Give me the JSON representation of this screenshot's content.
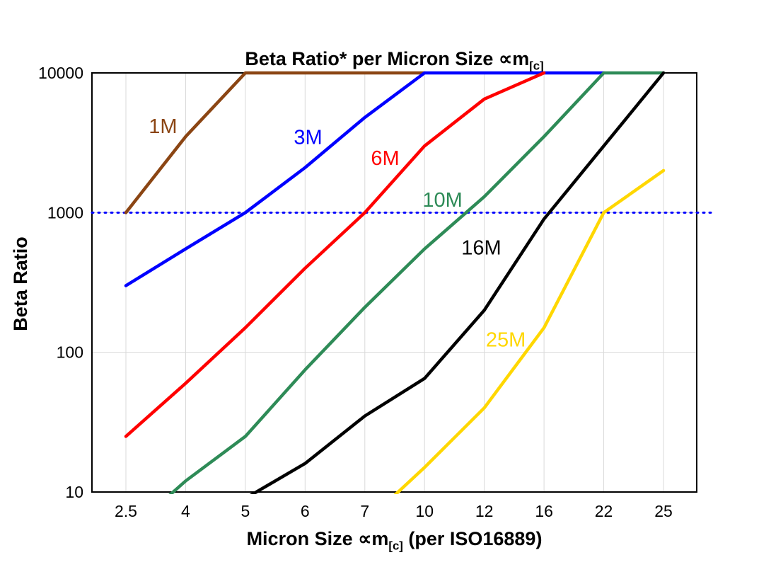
{
  "chart_data": {
    "type": "line",
    "title_main": "Beta Ratio* per Micron Size ∝m",
    "title_sub": "[c]",
    "ylabel": "Beta Ratio",
    "xlabel_pre": "Micron Size ∝m",
    "xlabel_sub": "[c]",
    "xlabel_post": " (per ISO16889)",
    "x_categories": [
      "2.5",
      "4",
      "5",
      "6",
      "7",
      "10",
      "12",
      "16",
      "22",
      "25"
    ],
    "y_ticks": [
      "10",
      "100",
      "1000",
      "10000"
    ],
    "y_scale": "log",
    "ylim": [
      10,
      10000
    ],
    "grid": true,
    "grid_color": "#d9d9d9",
    "axis_color": "#000000",
    "background_color": "#ffffff",
    "legend": "inline-curve-labels",
    "reference_line": {
      "value": 1000,
      "color": "#0000ff",
      "style": "dotted"
    },
    "series": [
      {
        "name": "1M",
        "color": "#8b4513",
        "values": [
          1000,
          3500,
          10000,
          10000,
          10000,
          10000,
          null,
          null,
          null,
          null
        ],
        "label_pos": {
          "x": 0.62,
          "y": 3700
        }
      },
      {
        "name": "3M",
        "color": "#0000ff",
        "values": [
          300,
          550,
          1000,
          2100,
          4800,
          10000,
          10000,
          10000,
          10000,
          null
        ],
        "label_pos": {
          "x": 3.05,
          "y": 3100
        }
      },
      {
        "name": "6M",
        "color": "#ff0000",
        "values": [
          25,
          60,
          150,
          400,
          1000,
          3000,
          6500,
          10000,
          null,
          null
        ],
        "label_pos": {
          "x": 4.34,
          "y": 2200
        }
      },
      {
        "name": "10M",
        "color": "#2e8b57",
        "values": [
          5,
          12,
          25,
          75,
          210,
          550,
          1300,
          3500,
          10000,
          10000
        ],
        "label_pos": {
          "x": 5.3,
          "y": 1100
        }
      },
      {
        "name": "16M",
        "color": "#000000",
        "values": [
          null,
          null,
          9,
          16,
          35,
          65,
          200,
          900,
          3000,
          10000
        ],
        "label_pos": {
          "x": 5.95,
          "y": 500
        }
      },
      {
        "name": "25M",
        "color": "#ffd700",
        "values": [
          null,
          null,
          null,
          null,
          6,
          15,
          40,
          150,
          1000,
          2000
        ],
        "label_pos": {
          "x": 6.36,
          "y": 110
        }
      }
    ]
  }
}
